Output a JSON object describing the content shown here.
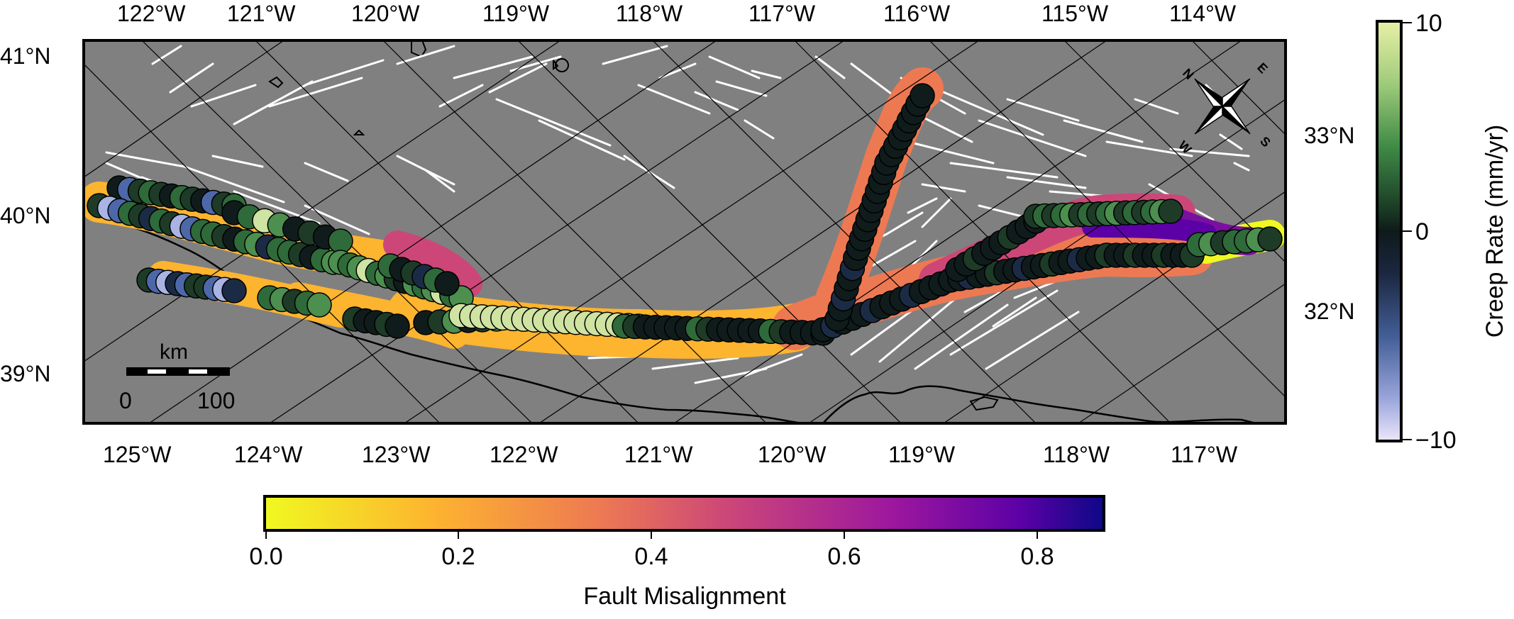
{
  "map": {
    "top_lon_labels": [
      "122°W",
      "121°W",
      "120°W",
      "119°W",
      "118°W",
      "117°W",
      "116°W",
      "115°W",
      "114°W"
    ],
    "bottom_lon_labels": [
      "125°W",
      "124°W",
      "123°W",
      "122°W",
      "121°W",
      "120°W",
      "119°W",
      "118°W",
      "117°W"
    ],
    "left_lat_labels": [
      "41°N",
      "40°N",
      "39°N"
    ],
    "right_lat_labels": [
      "33°N",
      "32°N"
    ],
    "scale_bar": {
      "unit": "km",
      "min_label": "0",
      "max_label": "100"
    },
    "compass": {
      "n": "N",
      "e": "E",
      "s": "S",
      "w": "W"
    },
    "colors": {
      "ocean": "#808080",
      "faults": "#ffffff",
      "coast": "#000000"
    }
  },
  "creep_colorbar": {
    "title": "Creep Rate (mm/yr)",
    "tick_labels": [
      "10",
      "0",
      "−10"
    ],
    "range": [
      -10,
      10
    ]
  },
  "misalignment_colorbar": {
    "title": "Fault Misalignment",
    "tick_labels": [
      "0.0",
      "0.2",
      "0.4",
      "0.6",
      "0.8"
    ],
    "range": [
      0,
      0.87
    ]
  }
}
